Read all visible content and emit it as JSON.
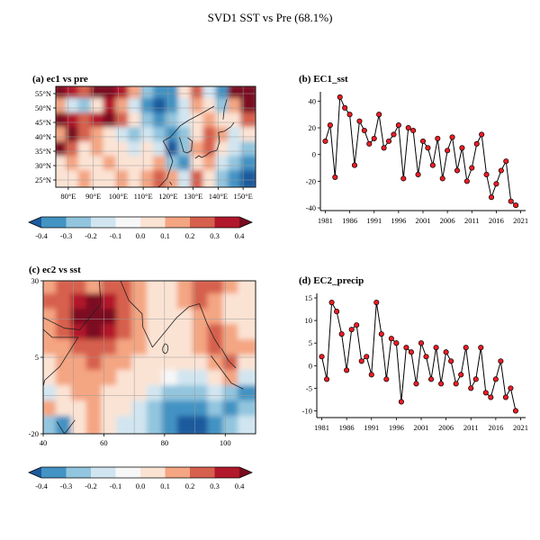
{
  "title": "SVD1 SST vs Pre (68.1%)",
  "colors": {
    "marker": "#ee1c25",
    "line": "#000000",
    "gridline": "#9a9a9a",
    "coastline": "#222222"
  },
  "colorbar": {
    "levels": [
      "-0.4",
      "-0.3",
      "-0.2",
      "-0.1",
      "0.0",
      "0.1",
      "0.2",
      "0.3",
      "0.4"
    ],
    "colors": [
      "#1c5a9e",
      "#4393c3",
      "#92c5de",
      "#d1e5f0",
      "#f7f7f7",
      "#fbe3d4",
      "#f4a582",
      "#d6604d",
      "#b2182b",
      "#7a0c20"
    ]
  },
  "chart_data": [
    {
      "id": "a",
      "type": "heatmap",
      "title": "(a) ec1 vs pre",
      "lon_range": [
        75,
        155
      ],
      "lat_range": [
        22.5,
        57.5
      ],
      "lat_tick_vals": [
        55,
        50,
        45,
        40,
        35,
        30,
        25
      ],
      "lat_ticks": [
        "55°N",
        "50°N",
        "45°N",
        "40°N",
        "35°N",
        "30°N",
        "25°N"
      ],
      "lon_tick_vals": [
        80,
        90,
        100,
        110,
        120,
        130,
        140,
        150
      ],
      "lon_ticks": [
        "80°E",
        "90°E",
        "100°E",
        "110°E",
        "120°E",
        "130°E",
        "140°E",
        "150°E"
      ],
      "grid_lons": [
        80,
        90,
        100,
        110,
        120,
        130,
        140,
        150
      ],
      "grid_lats": [
        25,
        30,
        35,
        40,
        45,
        50,
        55
      ],
      "grid": [
        [
          0.45,
          0.4,
          0.3,
          0.45,
          0.45,
          0.4,
          0.2,
          -0.2,
          -0.35,
          -0.3,
          0.1,
          0.3,
          -0.1,
          -0.3,
          0.45,
          0.45
        ],
        [
          0.2,
          -0.1,
          -0.25,
          0.1,
          0.35,
          0.2,
          -0.1,
          -0.3,
          -0.45,
          -0.35,
          -0.1,
          0.2,
          0.1,
          -0.2,
          0.2,
          0.45
        ],
        [
          0.45,
          0.35,
          0.25,
          0.4,
          0.45,
          0.3,
          0.1,
          -0.2,
          -0.3,
          -0.25,
          -0.1,
          0.1,
          0.2,
          0.1,
          0.1,
          0.3
        ],
        [
          0.2,
          0.45,
          0.3,
          0.2,
          0.1,
          -0.1,
          -0.2,
          -0.1,
          -0.2,
          -0.3,
          -0.2,
          0.1,
          0.3,
          0.2,
          -0.1,
          0.1
        ],
        [
          0.45,
          0.3,
          0.1,
          0.2,
          0.1,
          0.1,
          -0.1,
          0.1,
          -0.1,
          -0.45,
          -0.2,
          0.2,
          0.3,
          0.1,
          -0.1,
          -0.2
        ],
        [
          0.1,
          0.2,
          0.1,
          0.1,
          0.2,
          0.1,
          0.1,
          0.1,
          0.2,
          -0.2,
          -0.3,
          0.1,
          0.2,
          -0.1,
          -0.2,
          -0.3
        ],
        [
          0.1,
          0.1,
          0.2,
          0.1,
          0.1,
          0.2,
          0.1,
          0.2,
          0.3,
          0.2,
          -0.1,
          0.25,
          0.1,
          -0.2,
          -0.3,
          -0.45
        ]
      ]
    },
    {
      "id": "b",
      "type": "line",
      "title": "(b) EC1_sst",
      "x": [
        1981,
        1982,
        1983,
        1984,
        1985,
        1986,
        1987,
        1988,
        1989,
        1990,
        1991,
        1992,
        1993,
        1994,
        1995,
        1996,
        1997,
        1998,
        1999,
        2000,
        2001,
        2002,
        2003,
        2004,
        2005,
        2006,
        2007,
        2008,
        2009,
        2010,
        2011,
        2012,
        2013,
        2014,
        2015,
        2016,
        2017,
        2018,
        2019,
        2020
      ],
      "values": [
        10,
        22,
        -17,
        43,
        35,
        30,
        -8,
        25,
        18,
        8,
        12,
        30,
        5,
        10,
        15,
        22,
        -18,
        20,
        18,
        -15,
        10,
        5,
        -8,
        12,
        -18,
        3,
        13,
        -12,
        5,
        -20,
        -10,
        8,
        15,
        -15,
        -32,
        -22,
        -12,
        -5,
        -35,
        -38
      ],
      "ylim": [
        -42,
        47
      ],
      "yticks": [
        -40,
        -20,
        0,
        20,
        40
      ],
      "xticks": [
        1981,
        1986,
        1991,
        1996,
        2001,
        2006,
        2011,
        2016,
        2021
      ],
      "xlabel": "",
      "ylabel": ""
    },
    {
      "id": "c",
      "type": "heatmap",
      "title": "(c) ec2 vs sst",
      "lon_range": [
        40,
        110
      ],
      "lat_range": [
        -20,
        30
      ],
      "lat_tick_vals": [
        30,
        5,
        -20
      ],
      "lat_ticks": [
        "30",
        "5",
        "-20"
      ],
      "lon_tick_vals": [
        40,
        60,
        80,
        100
      ],
      "lon_ticks": [
        "40",
        "60",
        "80",
        "100"
      ],
      "grid_lons": [
        50,
        60,
        70,
        80,
        90,
        100
      ],
      "grid_lats": [
        -7.5,
        5,
        17.5
      ],
      "grid": [
        [
          0.2,
          0.3,
          0.3,
          0.2,
          0.3,
          0.3,
          0.2,
          0.1,
          0.1,
          0.2,
          0.3,
          0.3,
          0.2,
          0.1
        ],
        [
          0.3,
          0.3,
          0.4,
          0.45,
          0.4,
          0.3,
          0.2,
          0.1,
          0.1,
          0.2,
          0.3,
          0.2,
          0.1,
          0.1
        ],
        [
          0.2,
          0.3,
          0.45,
          0.45,
          0.45,
          0.3,
          0.2,
          0.1,
          0.1,
          0.1,
          0.2,
          0.2,
          0.1,
          0.1
        ],
        [
          0.2,
          0.3,
          0.4,
          0.45,
          0.35,
          0.3,
          0.2,
          0.1,
          0.1,
          0.1,
          0.2,
          0.3,
          0.2,
          0.1
        ],
        [
          0.2,
          0.2,
          0.3,
          0.3,
          0.3,
          0.2,
          0.2,
          0.1,
          0.1,
          0.1,
          0.2,
          0.3,
          0.2,
          0.2
        ],
        [
          0.1,
          0.2,
          0.2,
          0.3,
          0.2,
          0.2,
          0.1,
          0.1,
          0.05,
          0.05,
          0.1,
          0.2,
          0.3,
          0.1
        ],
        [
          0.1,
          0.2,
          0.2,
          0.2,
          0.2,
          0.1,
          0.1,
          0.05,
          -0.05,
          -0.1,
          -0.1,
          0.1,
          0.2,
          -0.1
        ],
        [
          -0.1,
          0.1,
          0.2,
          0.2,
          0.1,
          0.1,
          0.05,
          -0.1,
          -0.2,
          -0.2,
          -0.2,
          -0.1,
          -0.2,
          -0.3
        ],
        [
          0.2,
          0.1,
          0.1,
          0.2,
          0.1,
          0.05,
          -0.1,
          -0.2,
          -0.3,
          -0.35,
          -0.3,
          -0.2,
          -0.3,
          -0.2
        ],
        [
          -0.2,
          -0.3,
          0.1,
          0.2,
          0.1,
          -0.1,
          -0.1,
          -0.2,
          -0.3,
          -0.45,
          -0.4,
          -0.3,
          -0.2,
          -0.1
        ]
      ]
    },
    {
      "id": "d",
      "type": "line",
      "title": "(d) EC2_precip",
      "x": [
        1981,
        1982,
        1983,
        1984,
        1985,
        1986,
        1987,
        1988,
        1989,
        1990,
        1991,
        1992,
        1993,
        1994,
        1995,
        1996,
        1997,
        1998,
        1999,
        2000,
        2001,
        2002,
        2003,
        2004,
        2005,
        2006,
        2007,
        2008,
        2009,
        2010,
        2011,
        2012,
        2013,
        2014,
        2015,
        2016,
        2017,
        2018,
        2019,
        2020
      ],
      "values": [
        2,
        -3,
        14,
        12,
        7,
        -1,
        8,
        9,
        1,
        2,
        -2,
        14,
        7,
        -3,
        6,
        5,
        -8,
        4,
        3,
        -4,
        5,
        2,
        -3,
        4,
        -4,
        3,
        1,
        -4,
        -2,
        4,
        -5,
        -3,
        4,
        -6,
        -7,
        -3,
        1,
        -7,
        -5,
        -10
      ],
      "ylim": [
        -11.5,
        16
      ],
      "yticks": [
        -10,
        -5,
        0,
        5,
        10,
        15
      ],
      "xticks": [
        1981,
        1986,
        1991,
        1996,
        2001,
        2006,
        2011,
        2016,
        2021
      ],
      "xlabel": "",
      "ylabel": ""
    }
  ]
}
